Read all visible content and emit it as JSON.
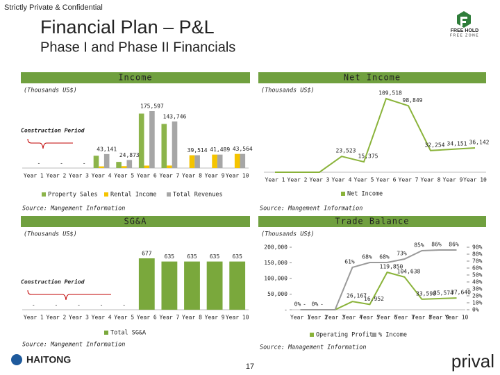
{
  "header": {
    "confidential": "Strictly Private & Confidential",
    "title": "Financial Plan – P&L",
    "subtitle": "Phase I and Phase II Financials"
  },
  "logo": {
    "line1": "FREE HOLD",
    "line2": "FREE ZONE"
  },
  "footer": {
    "page": "17",
    "left_logo": "HAITONG",
    "right_logo": "prival"
  },
  "chart_data": [
    {
      "type": "bar",
      "title": "Income",
      "unit": "(Thousands US$)",
      "annotation": "Construction Period",
      "source": "Source: Mangement Information",
      "categories": [
        "Year 1",
        "Year 2",
        "Year 3",
        "Year 4",
        "Year 5",
        "Year 6",
        "Year 7",
        "Year 8",
        "Year 9",
        "Year 10"
      ],
      "series": [
        {
          "name": "Property Sales",
          "color": "#8cb44a",
          "values": [
            0,
            0,
            0,
            38000,
            19000,
            168000,
            136000,
            0,
            0,
            0
          ]
        },
        {
          "name": "Rental Income",
          "color": "#f5c400",
          "values": [
            0,
            0,
            0,
            5141,
            5873,
            7597,
            7746,
            39514,
            41489,
            43564
          ]
        },
        {
          "name": "Total Revenues",
          "color": "#a6a6a6",
          "values": [
            0,
            0,
            0,
            43141,
            24873,
            175597,
            143746,
            39514,
            41489,
            43564
          ],
          "value_labels": [
            "-",
            "-",
            "-",
            "43,141",
            "24,873",
            "175,597",
            "143,746",
            "39,514",
            "41,489",
            "43,564"
          ]
        }
      ]
    },
    {
      "type": "line",
      "title": "Net Income",
      "unit": "(Thousands US$)",
      "source": "Source: Mangement Information",
      "categories": [
        "Year 1",
        "Year 2",
        "Year 3",
        "Year 4",
        "Year 5",
        "Year 6",
        "Year 7",
        "Year 8",
        "Year 9",
        "Year 10"
      ],
      "series": [
        {
          "name": "Net Income",
          "color": "#8ab33a",
          "values": [
            0,
            0,
            0,
            23523,
            15375,
            109518,
            98849,
            32254,
            34151,
            36142
          ],
          "value_labels": [
            null,
            null,
            null,
            "23,523",
            "15,375",
            "109,518",
            "98,849",
            "32,254",
            "34,151",
            "36,142"
          ]
        }
      ]
    },
    {
      "type": "bar",
      "title": "SG&A",
      "unit": "(Thousands US$)",
      "annotation": "Construction Period",
      "source": "Source: Mangement Information",
      "categories": [
        "Year 1",
        "Year 2",
        "Year 3",
        "Year 4",
        "Year 5",
        "Year 6",
        "Year 7",
        "Year 8",
        "Year 9",
        "Year 10"
      ],
      "series": [
        {
          "name": "Total SG&A",
          "color": "#7aa83c",
          "values": [
            0,
            0,
            0,
            0,
            0,
            677,
            635,
            635,
            635,
            635
          ],
          "value_labels": [
            "-",
            "-",
            "-",
            "-",
            "-",
            "677",
            "635",
            "635",
            "635",
            "635"
          ]
        }
      ]
    },
    {
      "type": "line",
      "title": "Trade Balance",
      "unit": "(Thousands US$)",
      "source": "Source: Management Information",
      "categories": [
        "Year 1",
        "Year 2",
        "Year 3",
        "Year 4",
        "Year 5",
        "Year 6",
        "Year 7",
        "Year 8",
        "Year 9",
        "Year 10"
      ],
      "ylim": [
        0,
        200000
      ],
      "yticks": [
        {
          "value": 0,
          "label": "-"
        },
        {
          "value": 50000,
          "label": "50,000"
        },
        {
          "value": 100000,
          "label": "100,000"
        },
        {
          "value": 150000,
          "label": "150,000"
        },
        {
          "value": 200000,
          "label": "200,000"
        }
      ],
      "y2lim": [
        0,
        90
      ],
      "y2ticks": [
        {
          "value": 0,
          "label": "0%"
        },
        {
          "value": 10,
          "label": "10%"
        },
        {
          "value": 20,
          "label": "20%"
        },
        {
          "value": 30,
          "label": "30%"
        },
        {
          "value": 40,
          "label": "40%"
        },
        {
          "value": 50,
          "label": "50%"
        },
        {
          "value": 60,
          "label": "60%"
        },
        {
          "value": 70,
          "label": "70%"
        },
        {
          "value": 80,
          "label": "80%"
        },
        {
          "value": 90,
          "label": "90%"
        }
      ],
      "series": [
        {
          "name": "Operating Profit",
          "color": "#8ab33a",
          "values": [
            0,
            0,
            0,
            26167,
            16952,
            119850,
            104638,
            33598,
            35574,
            37640
          ],
          "value_labels": [
            "-",
            "-",
            null,
            "26,167",
            "16,952",
            "119,850",
            "104,638",
            "33,598",
            "35,574",
            "37,640"
          ]
        },
        {
          "name": "% Income",
          "color": "#9a9a9a",
          "axis": "y2",
          "values": [
            0,
            0,
            0,
            61,
            68,
            68,
            73,
            85,
            86,
            86
          ],
          "value_labels": [
            "0%",
            "0%",
            null,
            "61%",
            "68%",
            "68%",
            "73%",
            "85%",
            "86%",
            "86%"
          ]
        }
      ]
    }
  ]
}
